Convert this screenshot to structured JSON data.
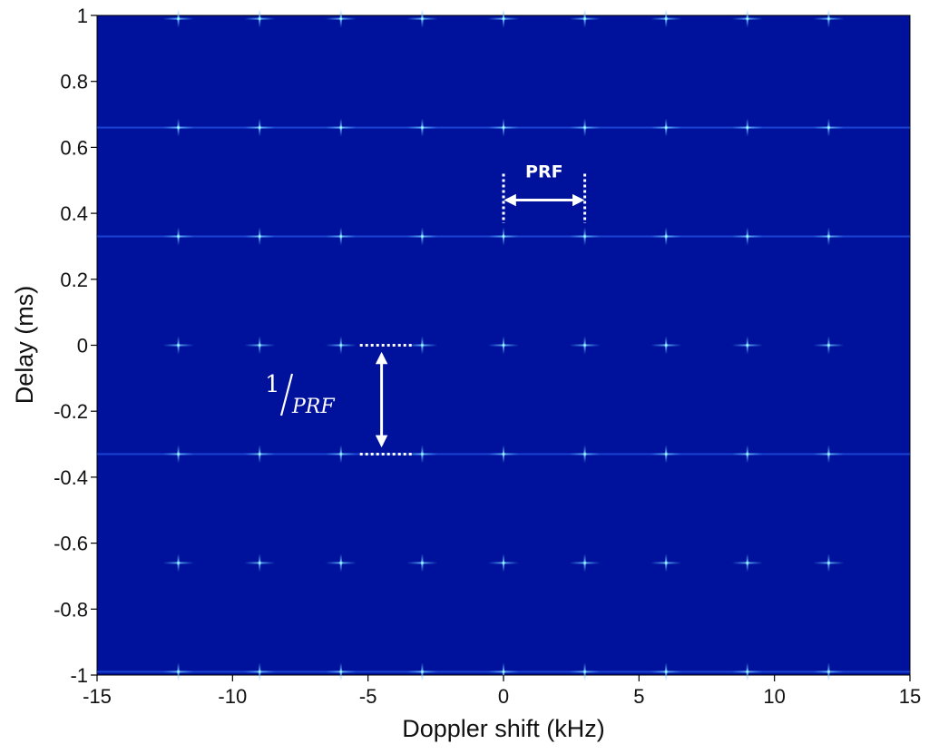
{
  "chart_data": {
    "type": "heatmap",
    "xlabel": "Doppler shift (kHz)",
    "ylabel": "Delay (ms)",
    "xlim": [
      -15,
      15
    ],
    "ylim": [
      -1,
      1
    ],
    "x_ticks": [
      -15,
      -10,
      -5,
      0,
      5,
      10,
      15
    ],
    "x_tick_labels": [
      "-15",
      "-10",
      "-5",
      "0",
      "5",
      "10",
      "15"
    ],
    "y_ticks": [
      1,
      0.8,
      0.6,
      0.4,
      0.2,
      0,
      -0.2,
      -0.4,
      -0.6,
      -0.8,
      -1
    ],
    "y_tick_labels": [
      "1",
      "0.8",
      "0.6",
      "0.4",
      "0.2",
      "0",
      "-0.2",
      "-0.4",
      "-0.6",
      "-0.8",
      "-1"
    ],
    "background_color": "#00129c",
    "peak_color": "#7fe6ff",
    "peaks": {
      "doppler_khz": [
        -12,
        -9,
        -6,
        -3,
        0,
        3,
        6,
        9,
        12
      ],
      "delay_ms": [
        -0.99,
        -0.66,
        -0.33,
        0,
        0.33,
        0.66,
        0.99
      ],
      "strong_delays_ms": [
        -0.99,
        -0.33,
        0.33,
        0.66
      ]
    },
    "annotations": {
      "prf": {
        "text": "PRF",
        "x_from": 0,
        "x_to": 3,
        "y": 0.44,
        "y_span": [
          0.37,
          0.52
        ]
      },
      "inv_prf": {
        "numerator": "1",
        "denominator": "PRF",
        "y_from": 0,
        "y_to": -0.33,
        "x": -4.5,
        "x_span": [
          -5.3,
          -3.3
        ]
      }
    }
  }
}
